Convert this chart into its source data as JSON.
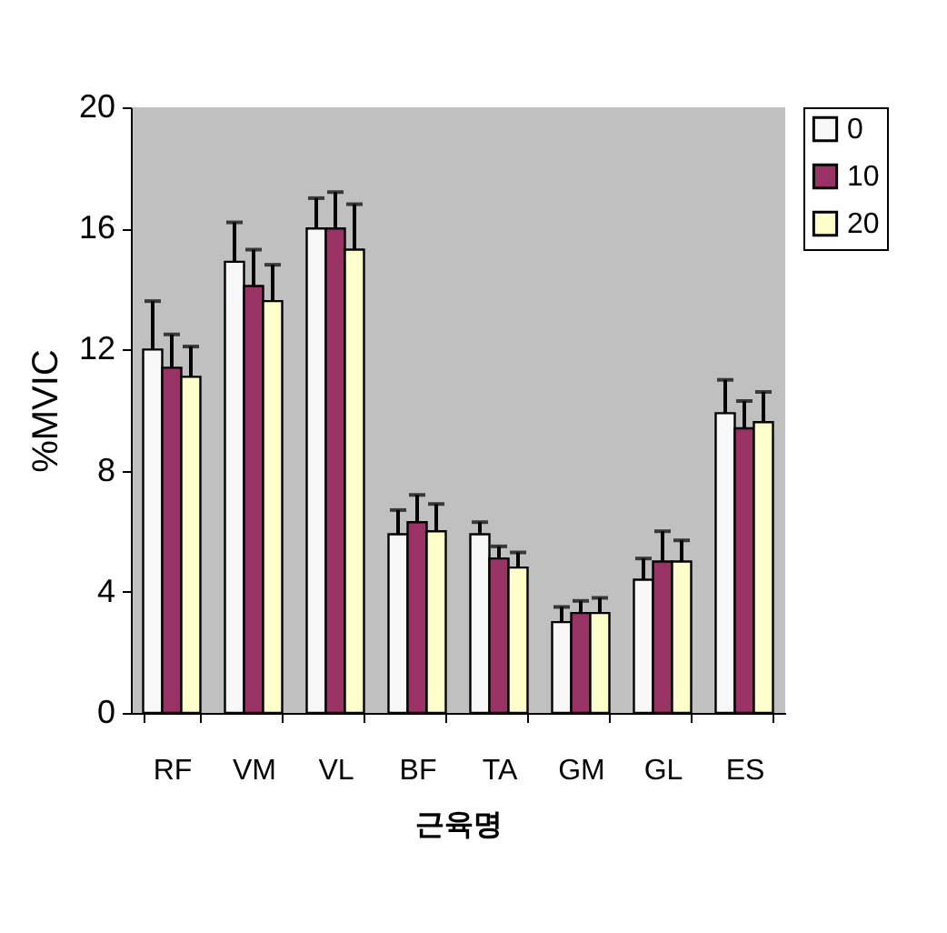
{
  "chart_data": {
    "type": "bar",
    "xlabel": "근육명",
    "ylabel": "%MVIC",
    "categories": [
      "RF",
      "VM",
      "VL",
      "BF",
      "TA",
      "GM",
      "GL",
      "ES"
    ],
    "series": [
      {
        "name": "0",
        "color": "#f8f8f8",
        "values": [
          12.0,
          14.9,
          16.0,
          5.9,
          5.9,
          3.0,
          4.4,
          9.9
        ],
        "errors": [
          [
            12.0,
            13.6
          ],
          [
            14.9,
            16.2
          ],
          [
            16.0,
            17.0
          ],
          [
            5.9,
            6.7
          ],
          [
            5.9,
            6.3
          ],
          [
            3.0,
            3.5
          ],
          [
            4.4,
            5.1
          ],
          [
            9.9,
            11.0
          ]
        ]
      },
      {
        "name": "10",
        "color": "#993366",
        "values": [
          11.4,
          14.1,
          16.0,
          6.3,
          5.1,
          3.3,
          5.0,
          9.4
        ],
        "errors": [
          [
            11.4,
            12.5
          ],
          [
            14.1,
            15.3
          ],
          [
            16.0,
            17.2
          ],
          [
            6.3,
            7.2
          ],
          [
            5.1,
            5.5
          ],
          [
            3.3,
            3.7
          ],
          [
            5.0,
            6.0
          ],
          [
            9.4,
            10.3
          ]
        ]
      },
      {
        "name": "20",
        "color": "#ffffcc",
        "values": [
          11.1,
          13.6,
          15.3,
          6.0,
          4.8,
          3.3,
          5.0,
          9.6
        ],
        "errors": [
          [
            11.1,
            12.1
          ],
          [
            13.6,
            14.8
          ],
          [
            15.3,
            16.8
          ],
          [
            6.0,
            6.9
          ],
          [
            4.8,
            5.3
          ],
          [
            3.3,
            3.8
          ],
          [
            5.0,
            5.7
          ],
          [
            9.6,
            10.6
          ]
        ]
      }
    ],
    "ylim": [
      0,
      20
    ],
    "yticks": [
      0,
      4,
      8,
      12,
      16,
      20
    ],
    "grid": false,
    "legend": "right"
  }
}
